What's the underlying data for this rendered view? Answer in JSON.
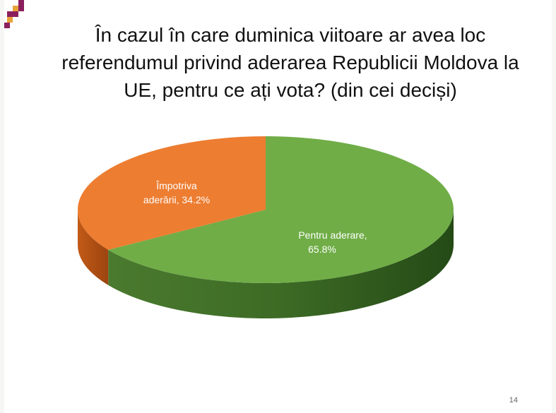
{
  "slide": {
    "title": "În cazul în care duminica viitoare ar avea loc referendumul privind aderarea Republicii Moldova la UE, pentru ce ați vota? (din cei deciși)",
    "page_number": "14"
  },
  "chart_data": {
    "type": "pie",
    "title": "În cazul în care duminica viitoare ar avea loc referendumul privind aderarea Republicii Moldova la UE, pentru ce ați vota? (din cei deciși)",
    "slices": [
      {
        "label_line1": "Pentru aderare,",
        "label_line2": "65.8%",
        "value": 65.8,
        "color": "#70ad47"
      },
      {
        "label_line1": "Împotriva",
        "label_line2": "aderării, 34.2%",
        "value": 34.2,
        "color": "#ed7d31"
      }
    ]
  },
  "colors": {
    "logo_primary": "#8b1f5e",
    "logo_secondary": "#e8a33c"
  }
}
